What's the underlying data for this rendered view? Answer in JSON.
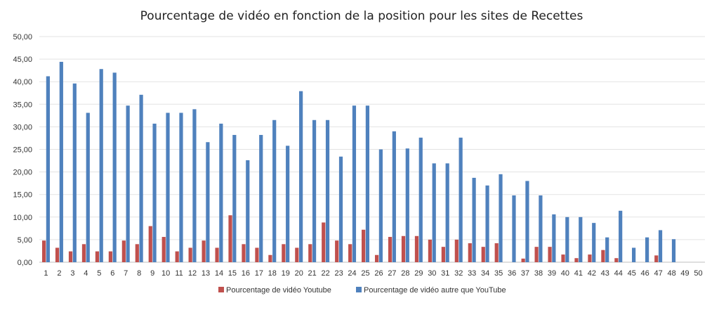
{
  "chart_data": {
    "type": "bar",
    "title": "Pourcentage de vidéo en fonction de la position pour les sites de Recettes",
    "xlabel": "",
    "ylabel": "",
    "ylim": [
      0,
      50
    ],
    "y_ticks": [
      "0,00",
      "5,00",
      "10,00",
      "15,00",
      "20,00",
      "25,00",
      "30,00",
      "35,00",
      "40,00",
      "45,00",
      "50,00"
    ],
    "grid": true,
    "legend_position": "bottom",
    "categories": [
      "1",
      "2",
      "3",
      "4",
      "5",
      "6",
      "7",
      "8",
      "9",
      "10",
      "11",
      "12",
      "13",
      "14",
      "15",
      "16",
      "17",
      "18",
      "19",
      "20",
      "21",
      "22",
      "23",
      "24",
      "25",
      "26",
      "27",
      "28",
      "29",
      "30",
      "31",
      "32",
      "33",
      "34",
      "35",
      "36",
      "37",
      "38",
      "39",
      "40",
      "41",
      "42",
      "43",
      "44",
      "45",
      "46",
      "47",
      "48",
      "49",
      "50"
    ],
    "series": [
      {
        "name": "Pourcentage de vidéo Youtube",
        "color": "#c0504d",
        "values": [
          4.8,
          3.2,
          2.4,
          4.0,
          2.4,
          2.4,
          4.8,
          4.0,
          8.0,
          5.6,
          2.4,
          3.2,
          4.8,
          3.2,
          10.4,
          4.0,
          3.2,
          1.6,
          4.0,
          3.2,
          4.0,
          8.8,
          4.8,
          4.0,
          7.2,
          1.6,
          5.6,
          5.8,
          5.8,
          5.0,
          3.4,
          5.0,
          4.2,
          3.4,
          4.2,
          0,
          0.8,
          3.4,
          3.4,
          1.7,
          0.9,
          1.7,
          2.7,
          0.9,
          0,
          0,
          1.5,
          0,
          0,
          0
        ]
      },
      {
        "name": "Pourcentage de vidéo autre que YouTube",
        "color": "#4f81bd",
        "values": [
          41.2,
          44.4,
          39.6,
          33.1,
          42.8,
          42.0,
          34.7,
          37.1,
          30.7,
          33.1,
          33.1,
          33.9,
          26.6,
          30.7,
          28.2,
          22.6,
          28.2,
          31.5,
          25.8,
          37.9,
          31.5,
          31.5,
          23.4,
          34.7,
          34.7,
          25.0,
          29.0,
          25.2,
          27.6,
          21.9,
          21.9,
          27.6,
          18.7,
          17.0,
          19.5,
          14.8,
          18.0,
          14.8,
          10.6,
          10.0,
          10.0,
          8.7,
          5.5,
          11.4,
          3.2,
          5.5,
          7.1,
          5.1,
          0,
          0
        ]
      }
    ]
  }
}
